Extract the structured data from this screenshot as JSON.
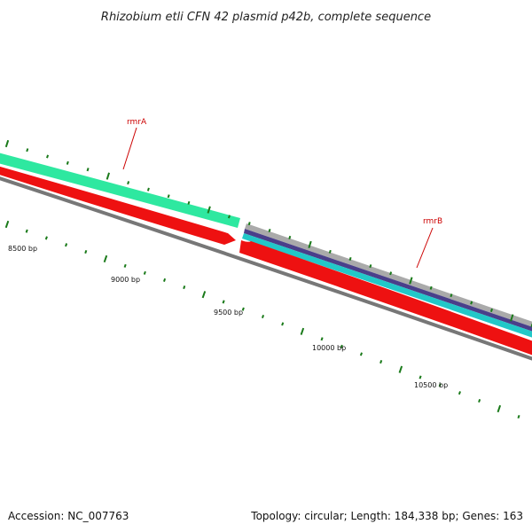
{
  "title": "Rhizobium etli CFN 42 plasmid p42b, complete sequence",
  "footer": {
    "accession": "Accession: NC_007763",
    "summary": "Topology: circular; Length: 184,338 bp; Genes: 163"
  },
  "genes": [
    {
      "name": "rmrA",
      "color": "#cc0000"
    },
    {
      "name": "rmrB",
      "color": "#cc0000"
    }
  ],
  "position_labels": [
    "8500 bp",
    "9000 bp",
    "9500 bp",
    "10000 bp",
    "10500 bp"
  ],
  "colors": {
    "tick": "#1a7a1a",
    "backbone": "#777777",
    "cds_forward": "#2ee8a0",
    "cds_reverse": "#ee1111",
    "gene_b_band_outer": "#aaaaaa",
    "gene_b_band_mid": "#4a3f8a",
    "gene_b_band_inner": "#22c8c8"
  }
}
